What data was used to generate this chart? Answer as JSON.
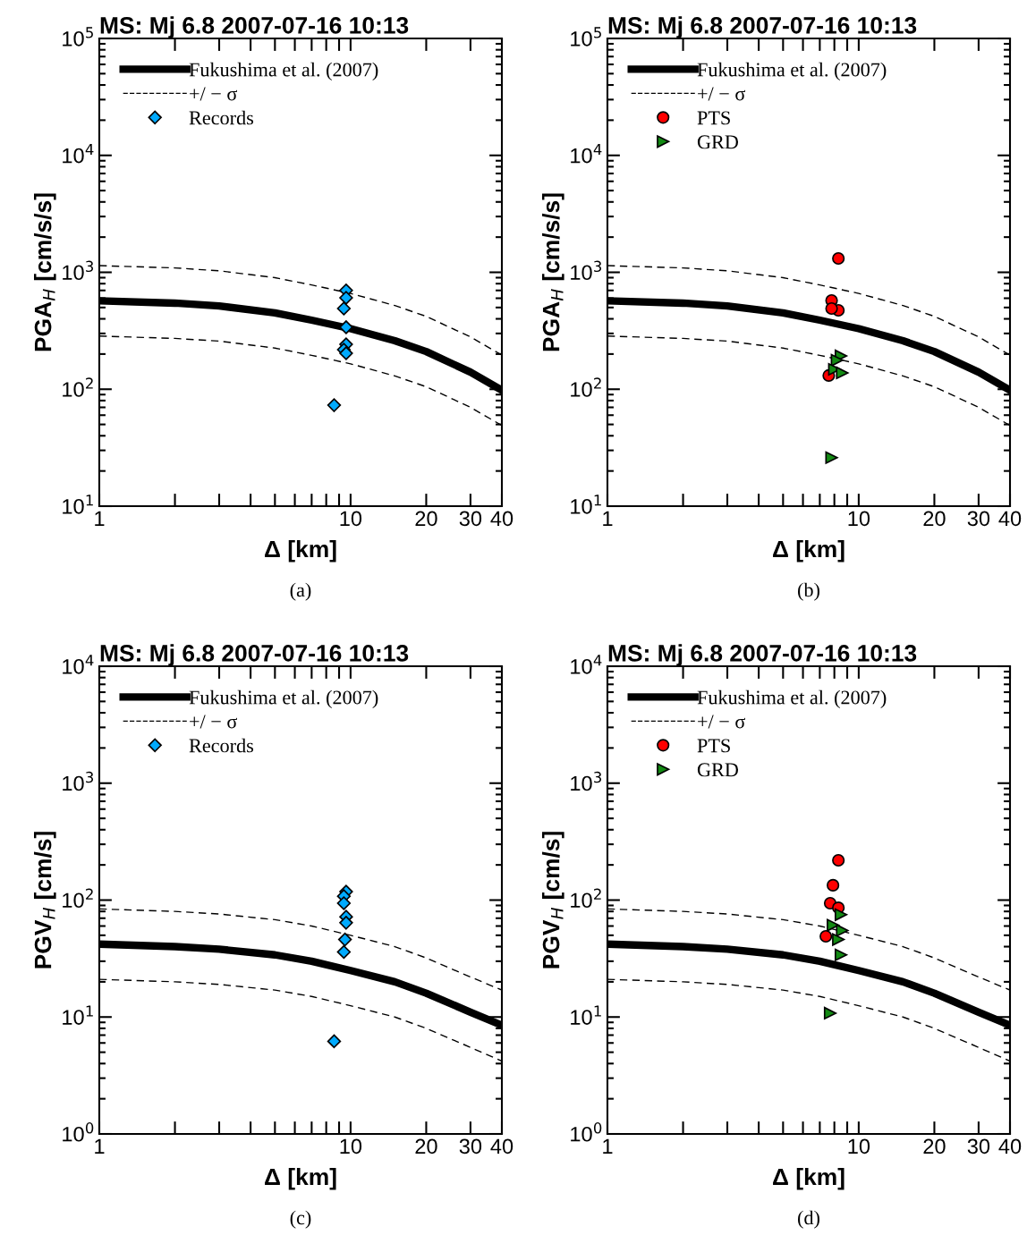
{
  "chart_data": [
    {
      "type": "line",
      "title": "MS: Mj 6.8 2007-07-16 10:13",
      "xlabel": "Δ [km]",
      "ylabel": "PGA$_{H}$ [cm/s/s]",
      "annotations": [
        "(a)"
      ],
      "log": "xy",
      "grid": false,
      "legend": "top left",
      "xlim": [
        1,
        40
      ],
      "xticks": [
        1,
        {
          "value": 2,
          "label": null
        },
        {
          "value": 3,
          "label": null
        },
        {
          "value": 4,
          "label": null
        },
        {
          "value": 5,
          "label": null
        },
        {
          "value": 6,
          "label": null
        },
        {
          "value": 7,
          "label": null
        },
        {
          "value": 8,
          "label": null
        },
        {
          "value": 9,
          "label": null
        },
        10,
        20,
        30,
        40
      ],
      "ylim": [
        10,
        100000
      ],
      "yticks": [
        {
          "value": 10,
          "label": "10$^{1}$"
        },
        {
          "value": 100,
          "label": "10$^{2}$"
        },
        {
          "value": 1000,
          "label": "10$^{3}$"
        },
        {
          "value": 10000,
          "label": "10$^{4}$"
        },
        {
          "value": 100000,
          "label": "10$^{5}$"
        }
      ],
      "series": [
        {
          "name": "Fukushima et al. (2007)",
          "line_style": "solid",
          "color": "#000000",
          "x": [
            1,
            2,
            3,
            5,
            7,
            10,
            15,
            20,
            30,
            40
          ],
          "values": [
            570,
            545,
            515,
            450,
            390,
            330,
            260,
            210,
            140,
            98
          ]
        },
        {
          "name": "+/ − σ",
          "line_style": "dashed",
          "color": "#000000",
          "x": [
            1,
            2,
            3,
            5,
            7,
            10,
            15,
            20,
            30,
            40
          ],
          "values": [
            1140,
            1090,
            1030,
            900,
            780,
            660,
            520,
            420,
            280,
            196
          ]
        },
        {
          "line_style": "dashed",
          "color": "#000000",
          "x": [
            1,
            2,
            3,
            5,
            7,
            10,
            15,
            20,
            30,
            40
          ],
          "values": [
            285,
            272,
            258,
            225,
            195,
            165,
            130,
            105,
            70,
            49
          ]
        },
        {
          "name": "Records",
          "type": "scatter",
          "marker": "diamond",
          "color": "#00aaff",
          "x": [
            9.6,
            9.6,
            9.4,
            9.6,
            9.6,
            9.4,
            9.6,
            8.6
          ],
          "values": [
            700,
            605,
            490,
            339,
            242,
            218,
            203,
            73
          ]
        }
      ]
    },
    {
      "type": "line",
      "title": "MS: Mj 6.8 2007-07-16 10:13",
      "xlabel": "Δ [km]",
      "ylabel": "PGA$_{H}$ [cm/s/s]",
      "annotations": [
        "(b)"
      ],
      "log": "xy",
      "grid": false,
      "legend": "top left",
      "xlim": [
        1,
        40
      ],
      "xticks": [
        1,
        {
          "value": 2,
          "label": null
        },
        {
          "value": 3,
          "label": null
        },
        {
          "value": 4,
          "label": null
        },
        {
          "value": 5,
          "label": null
        },
        {
          "value": 6,
          "label": null
        },
        {
          "value": 7,
          "label": null
        },
        {
          "value": 8,
          "label": null
        },
        {
          "value": 9,
          "label": null
        },
        10,
        20,
        30,
        40
      ],
      "ylim": [
        10,
        100000
      ],
      "yticks": [
        {
          "value": 10,
          "label": "10$^{1}$"
        },
        {
          "value": 100,
          "label": "10$^{2}$"
        },
        {
          "value": 1000,
          "label": "10$^{3}$"
        },
        {
          "value": 10000,
          "label": "10$^{4}$"
        },
        {
          "value": 100000,
          "label": "10$^{5}$"
        }
      ],
      "series": [
        {
          "name": "Fukushima et al. (2007)",
          "line_style": "solid",
          "color": "#000000",
          "x": [
            1,
            2,
            3,
            5,
            7,
            10,
            15,
            20,
            30,
            40
          ],
          "values": [
            570,
            545,
            515,
            450,
            390,
            330,
            260,
            210,
            140,
            98
          ]
        },
        {
          "name": "+/ − σ",
          "line_style": "dashed",
          "color": "#000000",
          "x": [
            1,
            2,
            3,
            5,
            7,
            10,
            15,
            20,
            30,
            40
          ],
          "values": [
            1140,
            1090,
            1030,
            900,
            780,
            660,
            520,
            420,
            280,
            196
          ]
        },
        {
          "line_style": "dashed",
          "color": "#000000",
          "x": [
            1,
            2,
            3,
            5,
            7,
            10,
            15,
            20,
            30,
            40
          ],
          "values": [
            285,
            272,
            258,
            225,
            195,
            165,
            130,
            105,
            70,
            49
          ]
        },
        {
          "name": "PTS",
          "type": "scatter",
          "marker": "circle",
          "color": "#ff0000",
          "x": [
            8.3,
            7.8,
            8.3,
            7.8,
            7.6
          ],
          "values": [
            1313,
            574,
            473,
            490,
            131
          ]
        },
        {
          "name": "GRD",
          "type": "scatter",
          "marker": "triangle",
          "color": "#138a13",
          "x": [
            8.5,
            8.2,
            8.0,
            8.6,
            7.8
          ],
          "values": [
            193,
            177,
            148,
            138,
            26
          ]
        }
      ]
    },
    {
      "type": "line",
      "title": "MS: Mj 6.8 2007-07-16 10:13",
      "xlabel": "Δ [km]",
      "ylabel": "PGV$_{H}$ [cm/s]",
      "annotations": [
        "(c)"
      ],
      "log": "xy",
      "grid": false,
      "legend": "top left",
      "xlim": [
        1,
        40
      ],
      "xticks": [
        1,
        {
          "value": 2,
          "label": null
        },
        {
          "value": 3,
          "label": null
        },
        {
          "value": 4,
          "label": null
        },
        {
          "value": 5,
          "label": null
        },
        {
          "value": 6,
          "label": null
        },
        {
          "value": 7,
          "label": null
        },
        {
          "value": 8,
          "label": null
        },
        {
          "value": 9,
          "label": null
        },
        10,
        20,
        30,
        40
      ],
      "ylim": [
        1,
        10000
      ],
      "yticks": [
        {
          "value": 1,
          "label": "10$^{0}$"
        },
        {
          "value": 10,
          "label": "10$^{1}$"
        },
        {
          "value": 100,
          "label": "10$^{2}$"
        },
        {
          "value": 1000,
          "label": "10$^{3}$"
        },
        {
          "value": 10000,
          "label": "10$^{4}$"
        }
      ],
      "series": [
        {
          "name": "Fukushima et al. (2007)",
          "line_style": "solid",
          "color": "#000000",
          "x": [
            1,
            2,
            3,
            5,
            7,
            10,
            15,
            20,
            30,
            40
          ],
          "values": [
            42,
            40,
            38,
            34,
            30,
            25,
            20,
            16,
            11,
            8.5
          ]
        },
        {
          "name": "+/ − σ",
          "line_style": "dashed",
          "color": "#000000",
          "x": [
            1,
            2,
            3,
            5,
            7,
            10,
            15,
            20,
            30,
            40
          ],
          "values": [
            84,
            80,
            76,
            68,
            60,
            50,
            40,
            32,
            22,
            17
          ]
        },
        {
          "line_style": "dashed",
          "color": "#000000",
          "x": [
            1,
            2,
            3,
            5,
            7,
            10,
            15,
            20,
            30,
            40
          ],
          "values": [
            21,
            20,
            19,
            17,
            15,
            12.5,
            10,
            8,
            5.5,
            4.2
          ]
        },
        {
          "name": "Records",
          "type": "scatter",
          "marker": "diamond",
          "color": "#00aaff",
          "x": [
            9.6,
            9.4,
            9.4,
            9.6,
            9.6,
            9.5,
            9.4,
            8.6
          ],
          "values": [
            118,
            108,
            94,
            72,
            64,
            46,
            36,
            6.2
          ]
        }
      ]
    },
    {
      "type": "line",
      "title": "MS: Mj 6.8 2007-07-16 10:13",
      "xlabel": "Δ [km]",
      "ylabel": "PGV$_{H}$ [cm/s]",
      "annotations": [
        "(d)"
      ],
      "log": "xy",
      "grid": false,
      "legend": "top left",
      "xlim": [
        1,
        40
      ],
      "xticks": [
        1,
        {
          "value": 2,
          "label": null
        },
        {
          "value": 3,
          "label": null
        },
        {
          "value": 4,
          "label": null
        },
        {
          "value": 5,
          "label": null
        },
        {
          "value": 6,
          "label": null
        },
        {
          "value": 7,
          "label": null
        },
        {
          "value": 8,
          "label": null
        },
        {
          "value": 9,
          "label": null
        },
        10,
        20,
        30,
        40
      ],
      "ylim": [
        1,
        10000
      ],
      "yticks": [
        {
          "value": 1,
          "label": "10$^{0}$"
        },
        {
          "value": 10,
          "label": "10$^{1}$"
        },
        {
          "value": 100,
          "label": "10$^{2}$"
        },
        {
          "value": 1000,
          "label": "10$^{3}$"
        },
        {
          "value": 10000,
          "label": "10$^{4}$"
        }
      ],
      "series": [
        {
          "name": "Fukushima et al. (2007)",
          "line_style": "solid",
          "color": "#000000",
          "x": [
            1,
            2,
            3,
            5,
            7,
            10,
            15,
            20,
            30,
            40
          ],
          "values": [
            42,
            40,
            38,
            34,
            30,
            25,
            20,
            16,
            11,
            8.5
          ]
        },
        {
          "name": "+/ − σ",
          "line_style": "dashed",
          "color": "#000000",
          "x": [
            1,
            2,
            3,
            5,
            7,
            10,
            15,
            20,
            30,
            40
          ],
          "values": [
            84,
            80,
            76,
            68,
            60,
            50,
            40,
            32,
            22,
            17
          ]
        },
        {
          "line_style": "dashed",
          "color": "#000000",
          "x": [
            1,
            2,
            3,
            5,
            7,
            10,
            15,
            20,
            30,
            40
          ],
          "values": [
            21,
            20,
            19,
            17,
            15,
            12.5,
            10,
            8,
            5.5,
            4.2
          ]
        },
        {
          "name": "PTS",
          "type": "scatter",
          "marker": "circle",
          "color": "#ff0000",
          "x": [
            8.3,
            7.9,
            7.7,
            8.3,
            7.4
          ],
          "values": [
            219,
            134,
            94,
            86,
            49
          ]
        },
        {
          "name": "GRD",
          "type": "scatter",
          "marker": "triangle",
          "color": "#138a13",
          "x": [
            8.5,
            7.9,
            8.6,
            8.3,
            8.5,
            7.7
          ],
          "values": [
            75,
            61,
            55,
            46,
            34,
            10.8
          ]
        }
      ]
    }
  ]
}
